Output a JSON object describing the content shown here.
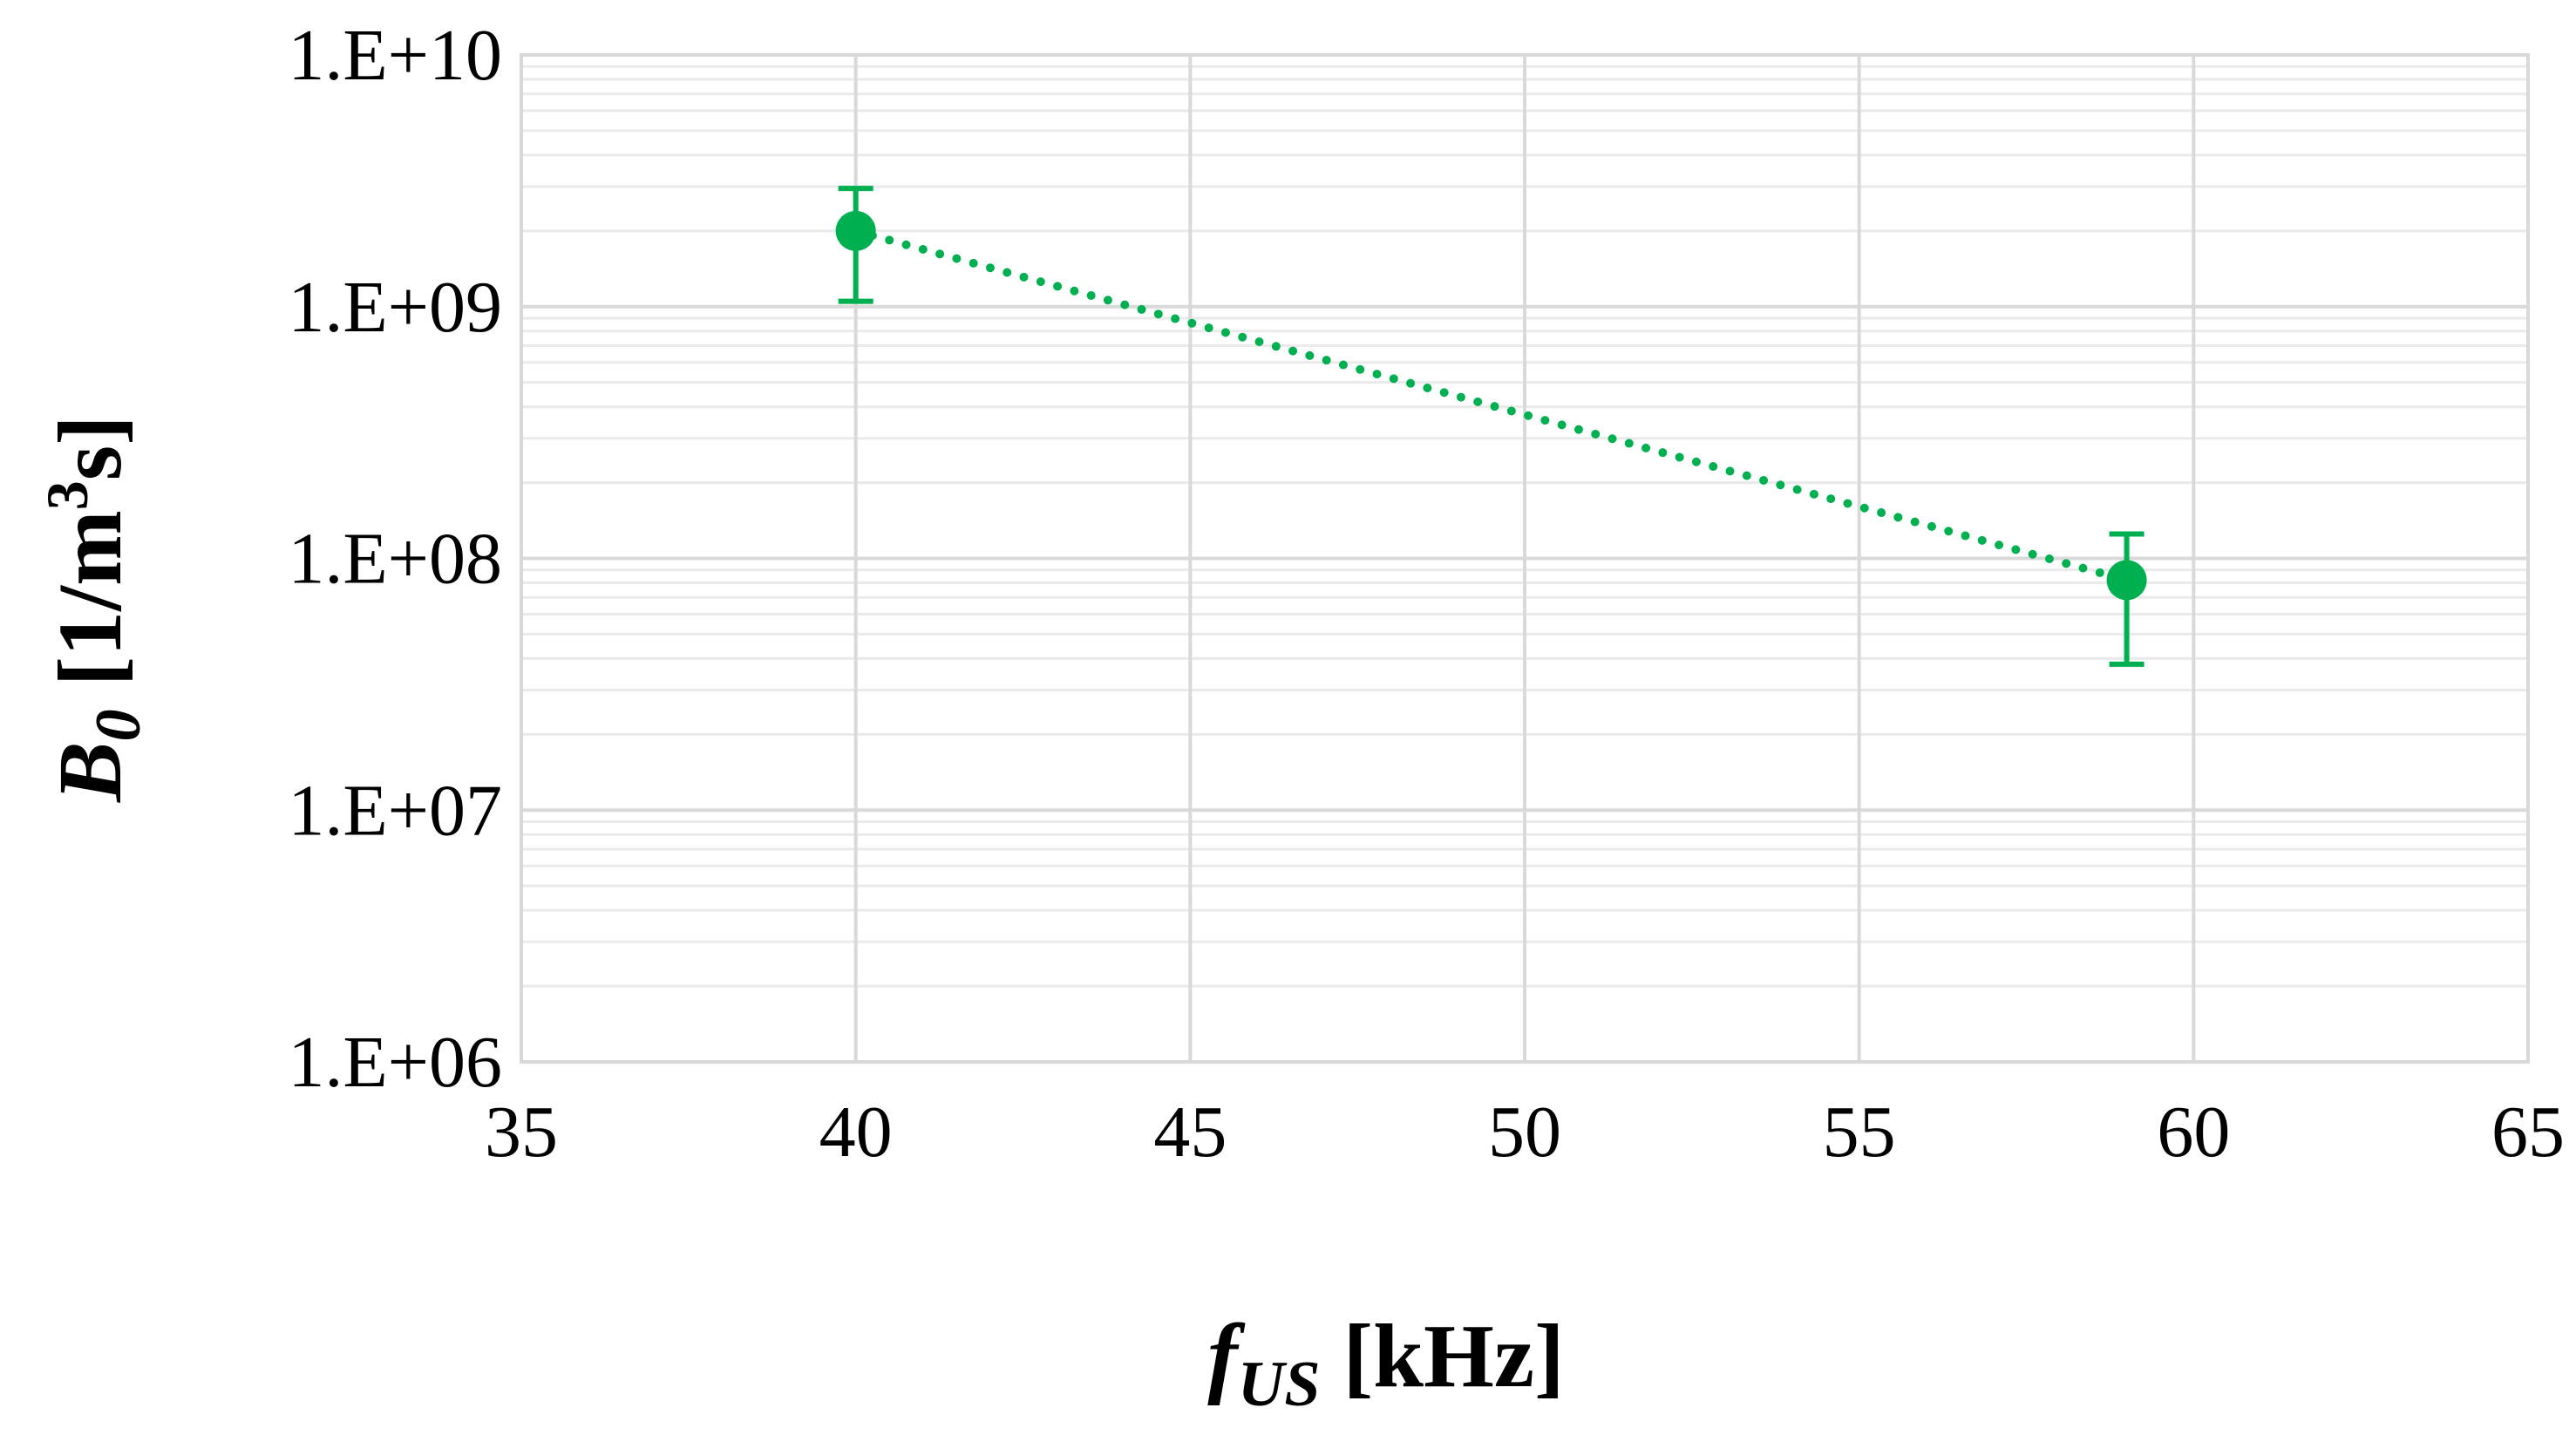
{
  "chart_data": {
    "type": "scatter",
    "x_axis": {
      "label_main": "f",
      "label_sub": "US",
      "label_unit": " [kHz]",
      "range": [
        35,
        65
      ],
      "ticks": [
        35,
        40,
        45,
        50,
        55,
        60,
        65
      ],
      "tick_labels": [
        "35",
        "40",
        "45",
        "50",
        "55",
        "60",
        "65"
      ]
    },
    "y_axis": {
      "label_main": "B",
      "label_sub": "0",
      "label_unit_pre": " [1/m",
      "label_unit_sup": "3",
      "label_unit_post": "s]",
      "scale": "log",
      "range": [
        1000000.0,
        10000000000.0
      ],
      "ticks": [
        1000000.0,
        10000000.0,
        100000000.0,
        1000000000.0,
        10000000000.0
      ],
      "tick_labels": [
        "1.E+06",
        "1.E+07",
        "1.E+08",
        "1.E+09",
        "1.E+10"
      ]
    },
    "grid": true,
    "minor_grid": true,
    "legend": "none",
    "series": [
      {
        "points": [
          {
            "x": 40,
            "y": 2000000000.0,
            "y_low": 1050000000.0,
            "y_high": 2950000000.0
          },
          {
            "x": 59,
            "y": 82000000.0,
            "y_low": 38000000.0,
            "y_high": 125000000.0
          }
        ],
        "line_style": "dotted",
        "marker": "circle",
        "color": "#00b050"
      }
    ]
  }
}
